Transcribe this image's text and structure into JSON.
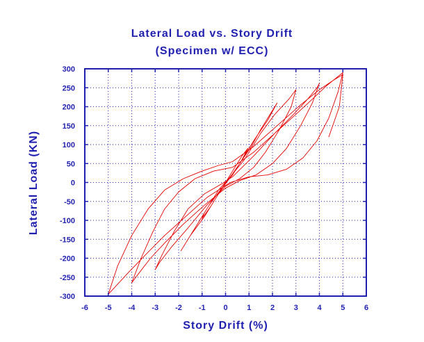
{
  "chart_data": {
    "type": "line",
    "title": "Lateral Load vs. Story Drift",
    "subtitle": "(Specimen w/ ECC)",
    "xlabel": "Story Drift (%)",
    "ylabel": "Lateral Load (KN)",
    "xlim": [
      -6,
      6
    ],
    "ylim": [
      -300,
      300
    ],
    "x_ticks": [
      -6,
      -5,
      -4,
      -3,
      -2,
      -1,
      0,
      1,
      2,
      3,
      4,
      5,
      6
    ],
    "y_ticks": [
      -300,
      -250,
      -200,
      -150,
      -100,
      -50,
      0,
      50,
      100,
      150,
      200,
      250,
      300
    ],
    "grid": true,
    "colors": {
      "axis": "#1f1fb0",
      "grid": "#1f1fb0",
      "series": "#e60000"
    },
    "series": [
      {
        "values": [
          [
            0,
            0
          ],
          [
            0.3,
            22
          ],
          [
            0.5,
            40
          ],
          [
            0.7,
            60
          ],
          [
            0.85,
            78
          ],
          [
            0.95,
            90
          ],
          [
            0.7,
            70
          ],
          [
            0.35,
            35
          ],
          [
            0.05,
            5
          ],
          [
            -0.3,
            -20
          ],
          [
            -0.6,
            -50
          ],
          [
            -0.9,
            -80
          ],
          [
            -1.0,
            -95
          ],
          [
            -0.6,
            -60
          ],
          [
            -0.2,
            -20
          ],
          [
            0.1,
            5
          ],
          [
            0.6,
            50
          ],
          [
            1.1,
            95
          ],
          [
            1.5,
            140
          ],
          [
            1.9,
            180
          ],
          [
            2.2,
            210
          ],
          [
            1.8,
            165
          ],
          [
            1.2,
            110
          ],
          [
            0.7,
            60
          ],
          [
            0.3,
            20
          ],
          [
            -0.1,
            -10
          ],
          [
            -0.7,
            -60
          ],
          [
            -1.2,
            -110
          ],
          [
            -1.6,
            -150
          ],
          [
            -1.9,
            -180
          ],
          [
            -1.5,
            -140
          ],
          [
            -0.9,
            -90
          ],
          [
            -0.4,
            -40
          ],
          [
            0.0,
            0
          ],
          [
            0.8,
            60
          ],
          [
            1.5,
            130
          ],
          [
            2.1,
            180
          ],
          [
            2.7,
            220
          ],
          [
            3.0,
            245
          ],
          [
            2.8,
            200
          ],
          [
            2.3,
            140
          ],
          [
            1.7,
            80
          ],
          [
            1.2,
            40
          ],
          [
            0.6,
            10
          ],
          [
            0.0,
            -10
          ],
          [
            -0.8,
            -60
          ],
          [
            -1.6,
            -120
          ],
          [
            -2.3,
            -170
          ],
          [
            -2.8,
            -210
          ],
          [
            -3.0,
            -230
          ],
          [
            -2.7,
            -190
          ],
          [
            -2.2,
            -130
          ],
          [
            -1.6,
            -70
          ],
          [
            -0.9,
            -30
          ],
          [
            -0.2,
            -5
          ],
          [
            0.3,
            15
          ],
          [
            1.2,
            70
          ],
          [
            2.1,
            130
          ],
          [
            2.9,
            180
          ],
          [
            3.5,
            220
          ],
          [
            3.9,
            250
          ],
          [
            4.0,
            262
          ],
          [
            3.7,
            210
          ],
          [
            3.2,
            150
          ],
          [
            2.6,
            90
          ],
          [
            2.0,
            50
          ],
          [
            1.3,
            20
          ],
          [
            0.6,
            5
          ],
          [
            0.0,
            -15
          ],
          [
            -0.9,
            -60
          ],
          [
            -1.8,
            -110
          ],
          [
            -2.6,
            -160
          ],
          [
            -3.2,
            -200
          ],
          [
            -3.7,
            -240
          ],
          [
            -4.0,
            -265
          ],
          [
            -3.6,
            -200
          ],
          [
            -3.1,
            -130
          ],
          [
            -2.6,
            -70
          ],
          [
            -2.0,
            -25
          ],
          [
            -1.3,
            10
          ],
          [
            -0.5,
            30
          ],
          [
            0.3,
            40
          ],
          [
            1.2,
            80
          ],
          [
            2.1,
            130
          ],
          [
            3.0,
            180
          ],
          [
            3.7,
            220
          ],
          [
            4.3,
            255
          ],
          [
            4.7,
            275
          ],
          [
            5.0,
            290
          ],
          [
            4.8,
            240
          ],
          [
            4.4,
            170
          ],
          [
            3.9,
            110
          ],
          [
            3.3,
            65
          ],
          [
            2.6,
            35
          ],
          [
            1.8,
            20
          ],
          [
            1.0,
            15
          ],
          [
            0.2,
            0
          ],
          [
            -0.8,
            -40
          ],
          [
            -1.7,
            -90
          ],
          [
            -2.6,
            -140
          ],
          [
            -3.4,
            -190
          ],
          [
            -4.1,
            -235
          ],
          [
            -4.7,
            -275
          ],
          [
            -5.0,
            -295
          ],
          [
            -4.6,
            -220
          ],
          [
            -4.0,
            -140
          ],
          [
            -3.3,
            -70
          ],
          [
            -2.6,
            -20
          ],
          [
            -1.8,
            10
          ],
          [
            -1.0,
            30
          ],
          [
            -0.3,
            45
          ],
          [
            0.3,
            55
          ],
          [
            1.2,
            95
          ],
          [
            2.2,
            150
          ],
          [
            3.2,
            205
          ],
          [
            4.0,
            245
          ],
          [
            4.6,
            270
          ],
          [
            5.0,
            285
          ],
          [
            4.85,
            200
          ],
          [
            4.4,
            120
          ]
        ]
      }
    ]
  }
}
